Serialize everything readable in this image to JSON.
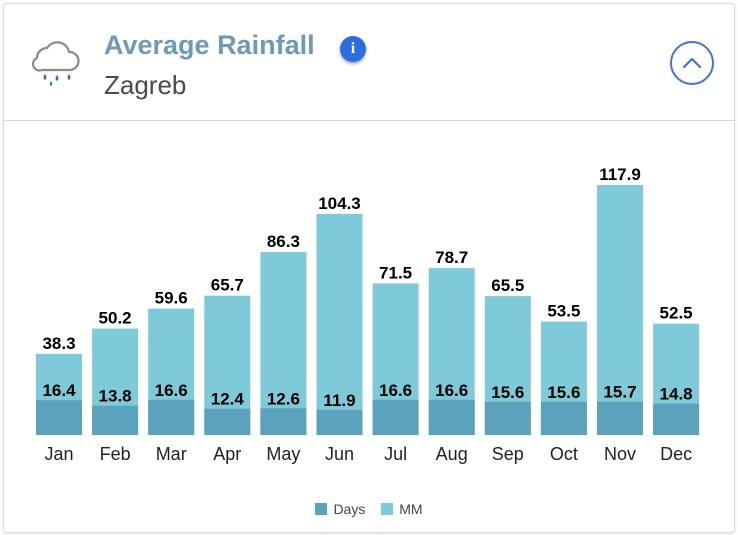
{
  "header": {
    "title": "Average Rainfall",
    "subtitle": "Zagreb",
    "icons": {
      "weather": "cloud-rain-icon",
      "info": "info-icon",
      "info_glyph": "i",
      "collapse": "chevron-up-icon"
    }
  },
  "colors": {
    "title": "#6e9ab8",
    "days": "#5ba3bd",
    "mm": "#7ecad9",
    "info": "#2d6be0",
    "collapse": "#3f72dc"
  },
  "chart_data": {
    "type": "bar",
    "title": "Average Rainfall",
    "xlabel": "",
    "ylabel": "",
    "ylim": [
      0,
      117.9
    ],
    "categories": [
      "Jan",
      "Feb",
      "Mar",
      "Apr",
      "May",
      "Jun",
      "Jul",
      "Aug",
      "Sep",
      "Oct",
      "Nov",
      "Dec"
    ],
    "series": [
      {
        "name": "MM",
        "values": [
          38.3,
          50.2,
          59.6,
          65.7,
          86.3,
          104.3,
          71.5,
          78.7,
          65.5,
          53.5,
          117.9,
          52.5
        ]
      },
      {
        "name": "Days",
        "values": [
          16.4,
          13.8,
          16.6,
          12.4,
          12.6,
          11.9,
          16.6,
          16.6,
          15.6,
          15.6,
          15.7,
          14.8
        ]
      }
    ],
    "legend": [
      "Days",
      "MM"
    ],
    "legend_position": "bottom-center",
    "grid": false
  }
}
